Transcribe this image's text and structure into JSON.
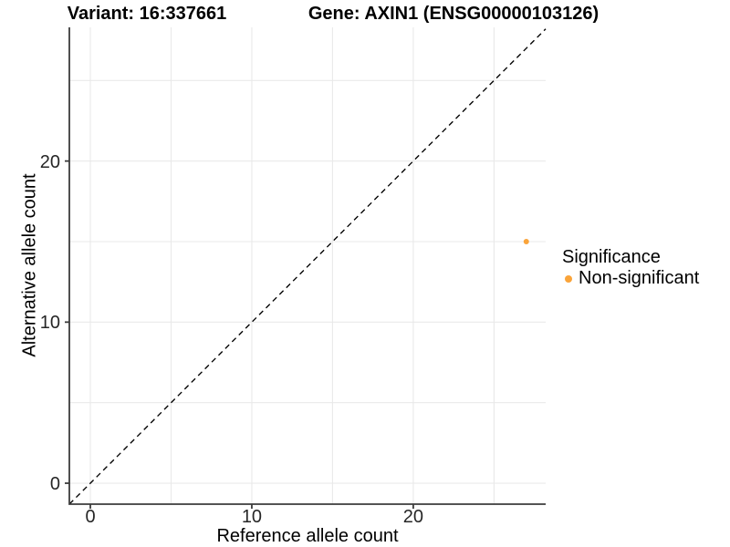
{
  "chart_data": {
    "type": "scatter",
    "title_left": "Variant: 16:337661",
    "title_right": "Gene: AXIN1 (ENSG00000103126)",
    "xlabel": "Reference allele count",
    "ylabel": "Alternative allele count",
    "x_ticks": [
      0,
      10,
      20
    ],
    "y_ticks": [
      0,
      10,
      20
    ],
    "x_minor_gridlines": [
      5,
      15,
      25
    ],
    "y_minor_gridlines": [
      5,
      15,
      25
    ],
    "xlim": [
      -1.3,
      28.2
    ],
    "ylim": [
      -1.3,
      28.3
    ],
    "grid": "on",
    "reference_line": {
      "style": "dashed",
      "slope": 1,
      "intercept": 0,
      "color": "#000000"
    },
    "series": [
      {
        "name": "Non-significant",
        "color": "#FAA43A",
        "points": [
          {
            "x": 27,
            "y": 15
          }
        ]
      }
    ],
    "legend": {
      "position": "right",
      "title": "Significance",
      "items": [
        {
          "label": "Non-significant",
          "color": "#FAA43A"
        }
      ]
    }
  },
  "colors": {
    "background": "#FFFFFF",
    "grid": "#E9E9E9",
    "axis_line": "#3C3C3C",
    "tick_text": "#262626",
    "point_orange": "#FAA43A",
    "dashed_line": "#000000"
  }
}
